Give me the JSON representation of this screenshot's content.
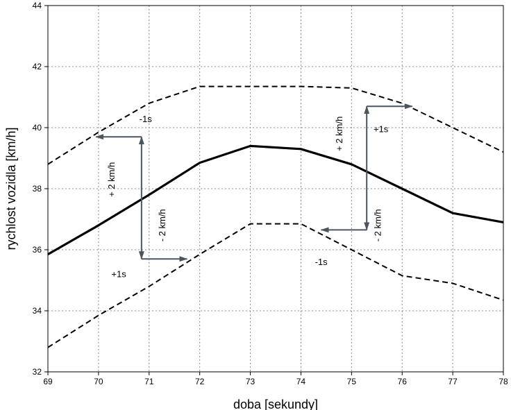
{
  "chart_data": {
    "type": "line",
    "xlabel": "doba [sekundy]",
    "ylabel": "rychlost vozidla [km/h]",
    "xlim": [
      69,
      78
    ],
    "ylim": [
      32,
      44
    ],
    "xticks": [
      "69",
      "70",
      "71",
      "72",
      "73",
      "74",
      "75",
      "76",
      "77",
      "78"
    ],
    "yticks": [
      "32",
      "34",
      "36",
      "38",
      "40",
      "42",
      "44"
    ],
    "grid": true,
    "series": [
      {
        "style": "solid",
        "points": [
          [
            69,
            35.85
          ],
          [
            70,
            36.8
          ],
          [
            71,
            37.8
          ],
          [
            72,
            38.85
          ],
          [
            73,
            39.4
          ],
          [
            74,
            39.3
          ],
          [
            75,
            38.8
          ],
          [
            76,
            38.0
          ],
          [
            77,
            37.2
          ],
          [
            78,
            36.9
          ]
        ]
      },
      {
        "style": "dashed",
        "points": [
          [
            69,
            38.8
          ],
          [
            70,
            39.85
          ],
          [
            71,
            40.8
          ],
          [
            72,
            41.35
          ],
          [
            73,
            41.35
          ],
          [
            74,
            41.35
          ],
          [
            75,
            41.3
          ],
          [
            76,
            40.8
          ],
          [
            77,
            40.0
          ],
          [
            78,
            39.2
          ]
        ]
      },
      {
        "style": "dashed",
        "points": [
          [
            69,
            32.8
          ],
          [
            70,
            33.85
          ],
          [
            71,
            34.8
          ],
          [
            72,
            35.85
          ],
          [
            73,
            36.85
          ],
          [
            74,
            36.85
          ],
          [
            75,
            36.0
          ],
          [
            76,
            35.15
          ],
          [
            77,
            34.9
          ],
          [
            78,
            34.35
          ]
        ]
      }
    ],
    "arrows": [
      {
        "from": [
          70.85,
          39.7
        ],
        "to": [
          69.95,
          39.7
        ]
      },
      {
        "from": [
          70.85,
          37.7
        ],
        "to": [
          70.85,
          39.7
        ]
      },
      {
        "from": [
          70.85,
          37.7
        ],
        "to": [
          70.85,
          35.7
        ]
      },
      {
        "from": [
          70.85,
          35.7
        ],
        "to": [
          71.75,
          35.7
        ]
      },
      {
        "from": [
          75.3,
          38.8
        ],
        "to": [
          75.3,
          40.7
        ]
      },
      {
        "from": [
          75.3,
          40.7
        ],
        "to": [
          76.2,
          40.7
        ]
      },
      {
        "from": [
          75.3,
          38.8
        ],
        "to": [
          75.3,
          36.65
        ]
      },
      {
        "from": [
          75.3,
          36.65
        ],
        "to": [
          74.4,
          36.65
        ]
      }
    ],
    "annotations": [
      {
        "text": "-1s",
        "x": 70.93,
        "y": 40.18,
        "rotate": 0
      },
      {
        "text": "+ 2 km/h",
        "x": 70.32,
        "y": 38.3,
        "rotate": -90
      },
      {
        "text": "- 2 km/h",
        "x": 71.32,
        "y": 36.8,
        "rotate": -90
      },
      {
        "text": "+1s",
        "x": 70.4,
        "y": 35.1,
        "rotate": 0
      },
      {
        "text": "+ 2 km/h",
        "x": 74.82,
        "y": 39.8,
        "rotate": -90
      },
      {
        "text": "+1s",
        "x": 75.58,
        "y": 39.85,
        "rotate": 0
      },
      {
        "text": "- 2 km/h",
        "x": 75.58,
        "y": 36.8,
        "rotate": -90
      },
      {
        "text": "-1s",
        "x": 74.4,
        "y": 35.5,
        "rotate": 0
      }
    ]
  }
}
